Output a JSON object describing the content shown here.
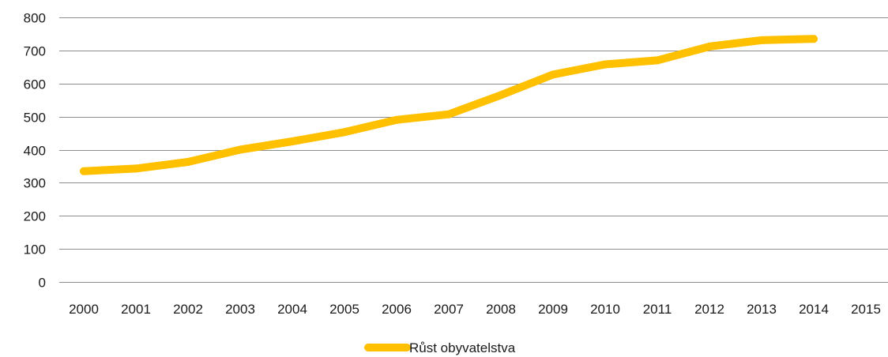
{
  "chart_data": {
    "type": "line",
    "title": "",
    "xlabel": "",
    "ylabel": "",
    "x_categories": [
      "2000",
      "2001",
      "2002",
      "2003",
      "2004",
      "2005",
      "2006",
      "2007",
      "2008",
      "2009",
      "2010",
      "2011",
      "2012",
      "2013",
      "2014",
      "2015"
    ],
    "y_ticks": [
      "0",
      "100",
      "200",
      "300",
      "400",
      "500",
      "600",
      "700",
      "800"
    ],
    "ylim": [
      0,
      800
    ],
    "grid": true,
    "legend_position": "bottom",
    "series": [
      {
        "name": "Růst obyvatelstva",
        "color": "#ffc000",
        "x": [
          "2000",
          "2001",
          "2002",
          "2003",
          "2004",
          "2005",
          "2006",
          "2007",
          "2008",
          "2009",
          "2010",
          "2011",
          "2012",
          "2013",
          "2014"
        ],
        "values": [
          335,
          343,
          363,
          400,
          425,
          453,
          490,
          507,
          565,
          627,
          658,
          670,
          712,
          731,
          735
        ]
      }
    ]
  }
}
